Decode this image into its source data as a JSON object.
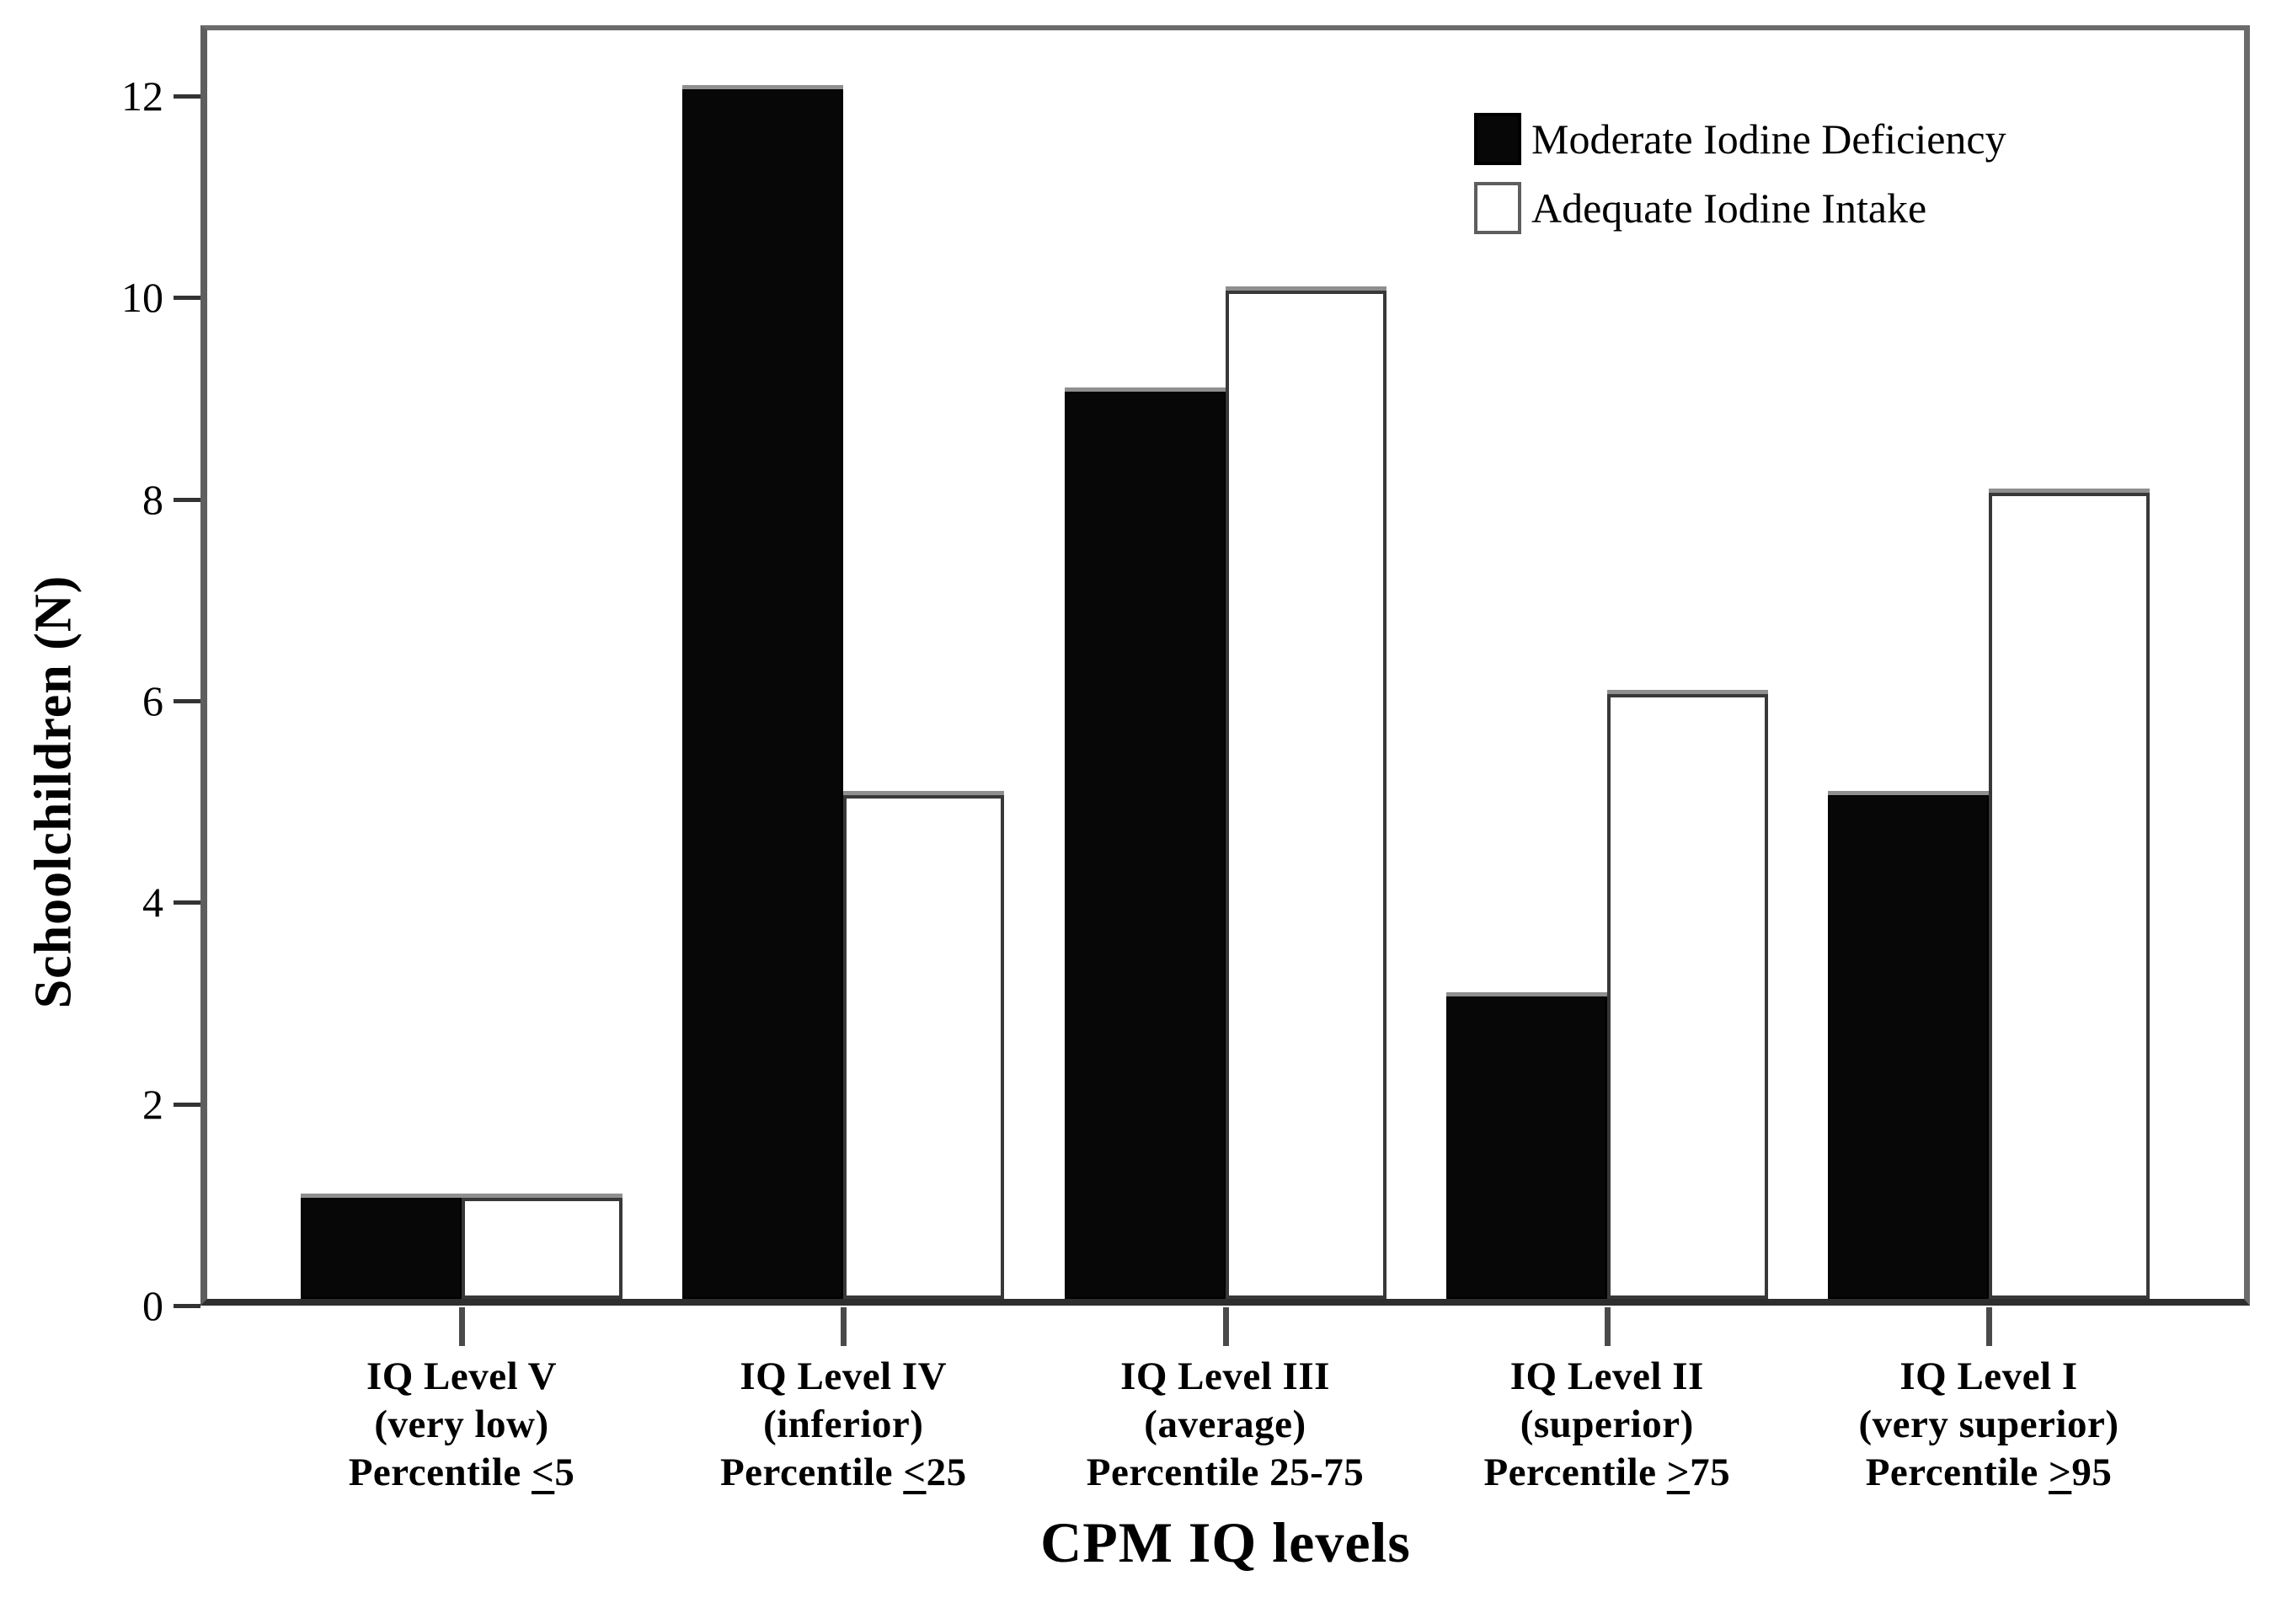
{
  "figure": {
    "background": "#ffffff",
    "frame_color": "#6b6b6b",
    "baseline_color": "#2e2e2e",
    "tick_color": "#333333",
    "bar_cap_color": "#8f8f8f",
    "text_color": "#000000"
  },
  "chart_data": {
    "type": "bar",
    "title": "",
    "xlabel": "CPM IQ levels",
    "ylabel": "Schoolchildren (N)",
    "ylim": [
      0,
      12.7
    ],
    "yticks": [
      0,
      2,
      4,
      6,
      8,
      10,
      12
    ],
    "grid": false,
    "legend_position": "top-right-inside",
    "categories": [
      [
        "IQ Level V",
        "(very low)",
        "Percentile ≤5"
      ],
      [
        "IQ Level IV",
        "(inferior)",
        "Percentile ≤25"
      ],
      [
        "IQ Level III",
        "(average)",
        "Percentile 25-75"
      ],
      [
        "IQ Level II",
        "(superior)",
        "Percentile ≥75"
      ],
      [
        "IQ Level I",
        "(very superior)",
        "Percentile ≥95"
      ]
    ],
    "series": [
      {
        "name": "Moderate Iodine Deficiency",
        "fill": "#070707",
        "border": "#000000",
        "values": [
          1,
          12,
          9,
          3,
          5
        ]
      },
      {
        "name": "Adequate Iodine Intake",
        "fill": "#ffffff",
        "border": "#383838",
        "values": [
          1,
          5,
          10,
          6,
          8
        ]
      }
    ]
  }
}
